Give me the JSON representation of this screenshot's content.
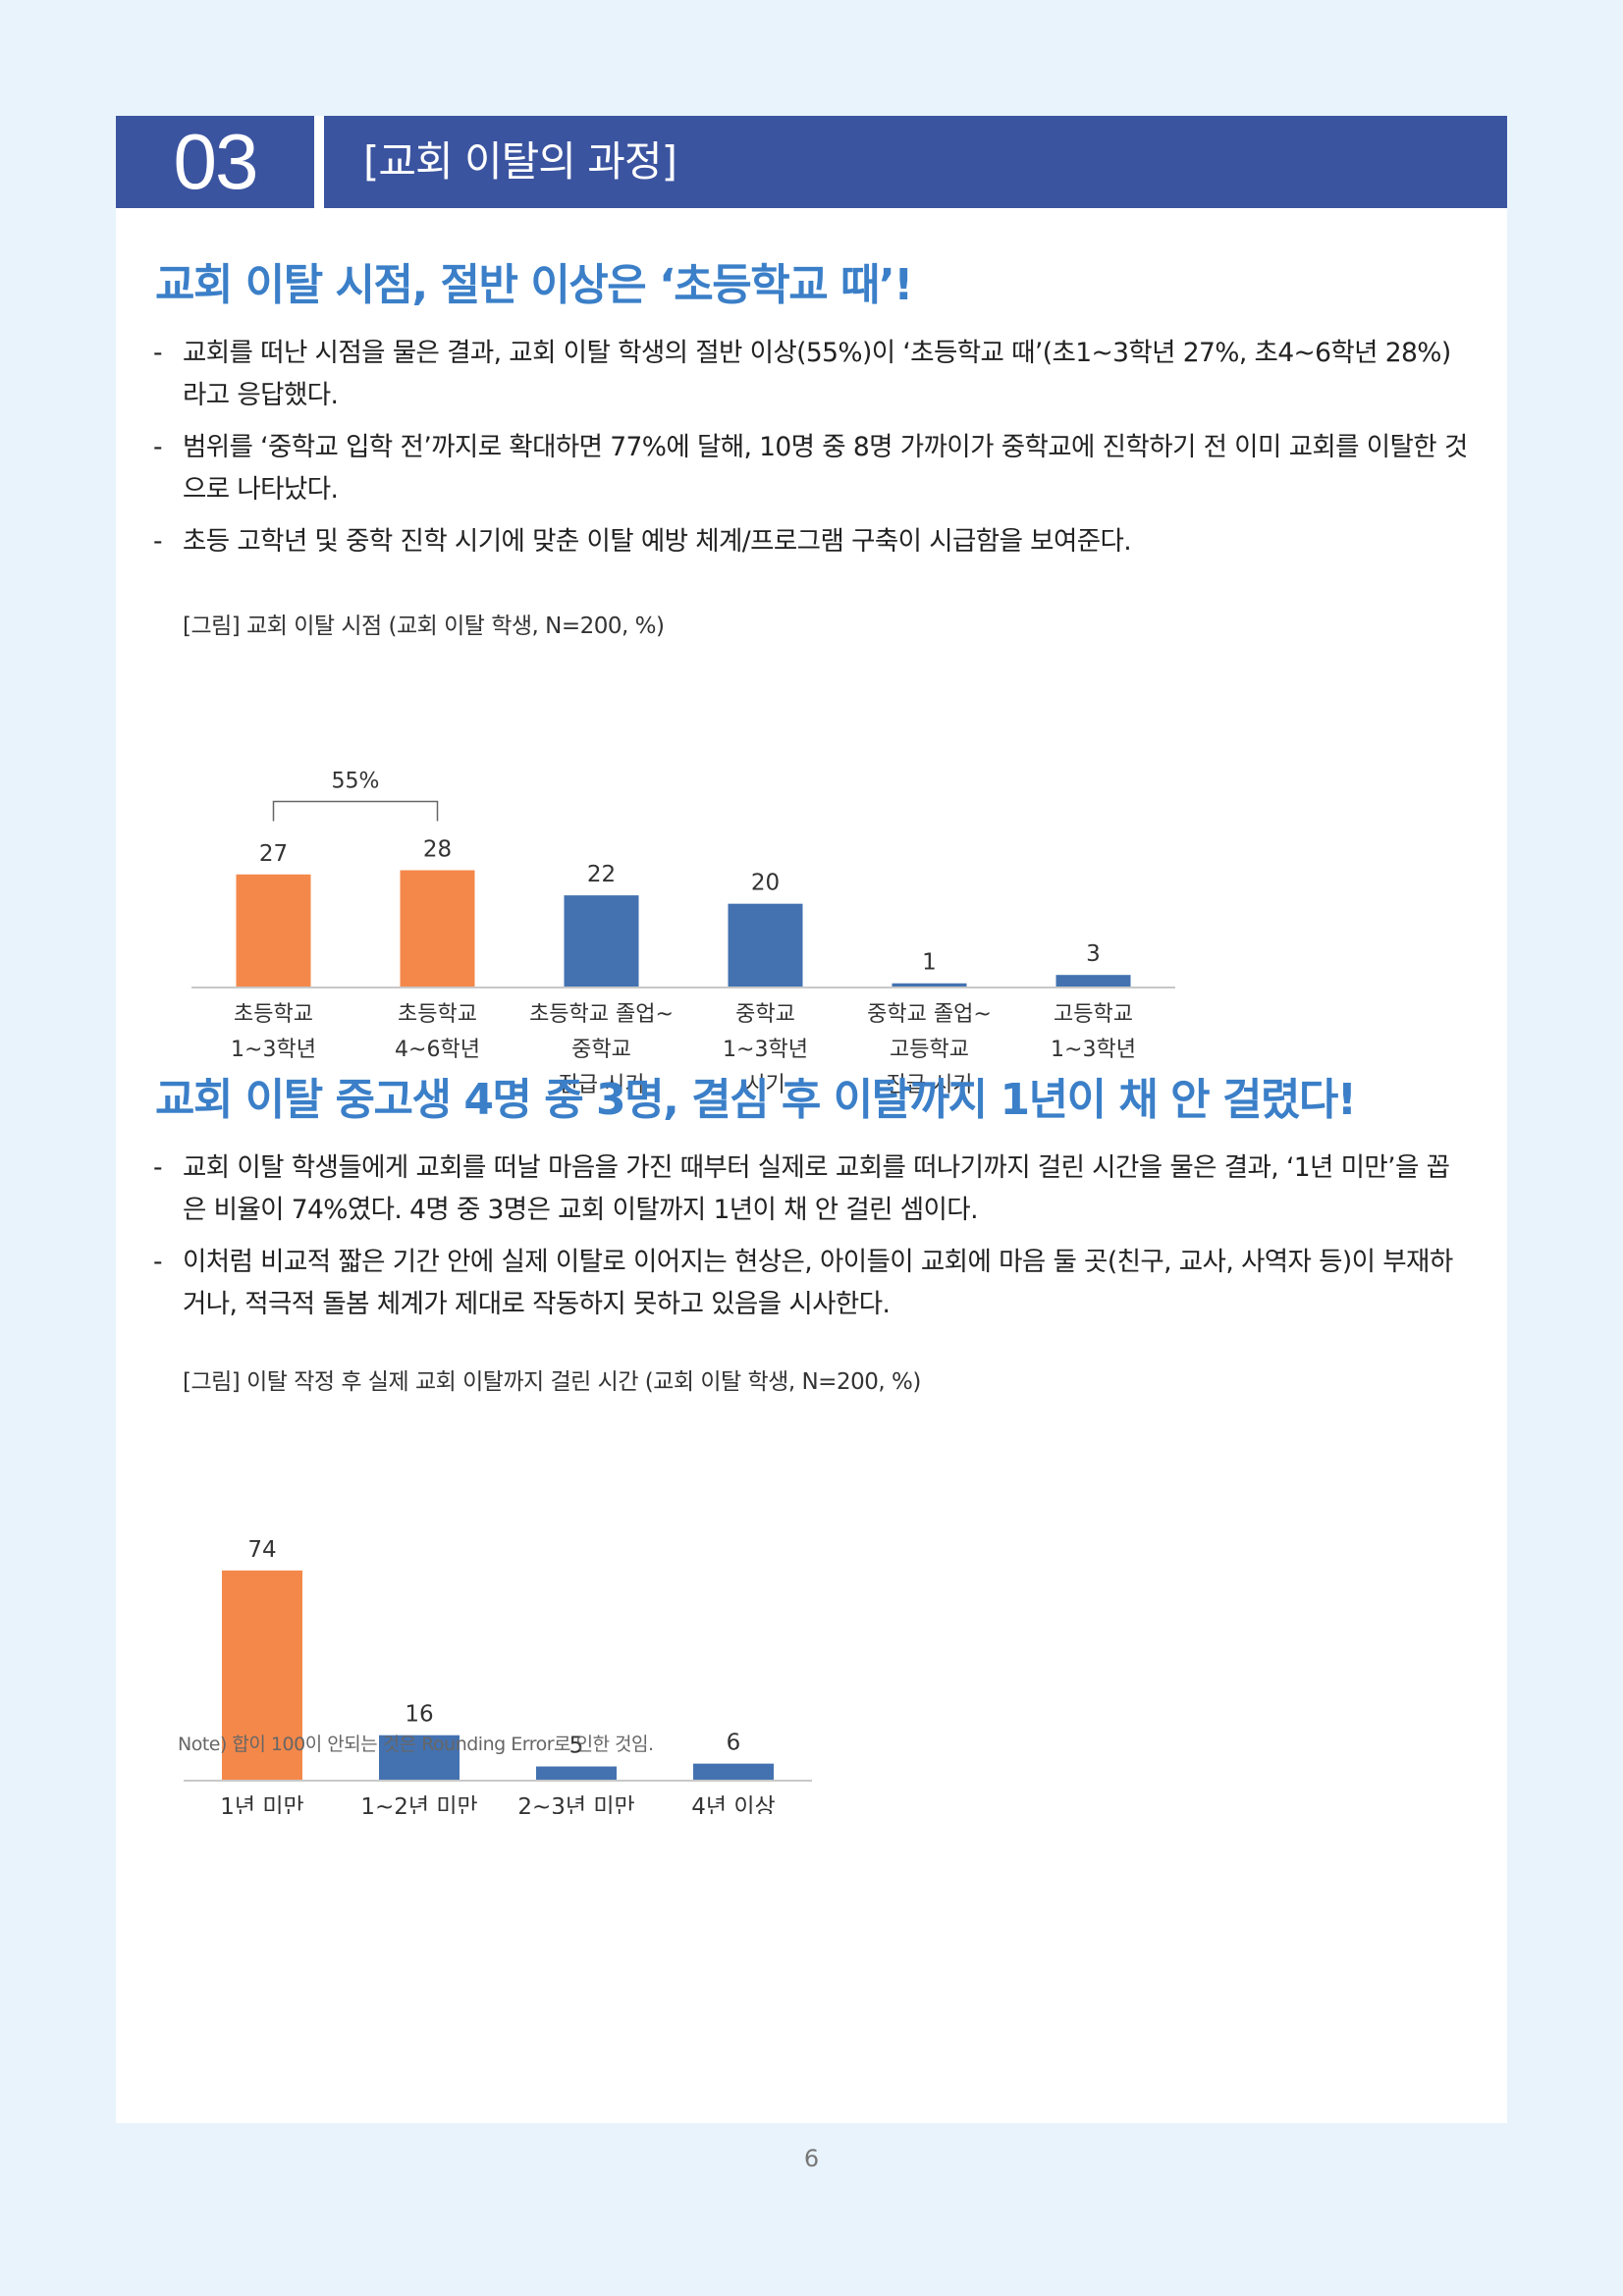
{
  "section": {
    "number": "03",
    "title": "[교회 이탈의 과정]"
  },
  "block1": {
    "headline": "교회 이탈 시점, 절반 이상은 ‘초등학교 때’!",
    "bullets": [
      "교회를 떠난 시점을 물은 결과, 교회 이탈 학생의 절반 이상(55%)이 ‘초등학교 때’(초1~3학년 27%, 초4~6학년 28%)라고 응답했다.",
      "범위를 ‘중학교 입학 전’까지로 확대하면 77%에 달해, 10명 중 8명 가까이가 중학교에 진학하기 전 이미 교회를 이탈한 것으로 나타났다.",
      "초등 고학년 및 중학 진학 시기에 맞춘 이탈 예방 체계/프로그램 구축이 시급함을 보여준다."
    ],
    "figure_caption": "[그림] 교회 이탈 시점 (교회 이탈 학생, N=200, %)"
  },
  "block2": {
    "headline": "교회 이탈 중고생 4명 중 3명, 결심 후 이탈까지 1년이 채 안 걸렸다!",
    "bullets": [
      "교회 이탈 학생들에게 교회를 떠날 마음을 가진 때부터 실제로 교회를 떠나기까지 걸린 시간을 물은 결과, ‘1년 미만’을 꼽은 비율이 74%였다. 4명 중 3명은 교회 이탈까지 1년이 채 안 걸린 셈이다.",
      "이처럼 비교적 짧은 기간 안에 실제 이탈로 이어지는 현상은, 아이들이 교회에 마음 둘 곳(친구, 교사, 사역자 등)이 부재하거나, 적극적 돌봄 체계가 제대로 작동하지 못하고 있음을 시사한다."
    ],
    "figure_caption": "[그림] 이탈 작정 후 실제 교회 이탈까지 걸린 시간 (교회 이탈 학생, N=200, %)",
    "note": "Note) 합이 100이 안되는 것은 Rounding Error로 인한 것임."
  },
  "chart_data": [
    {
      "type": "bar",
      "categories": [
        [
          "초등학교",
          "1~3학년"
        ],
        [
          "초등학교",
          "4~6학년"
        ],
        [
          "초등학교 졸업~",
          "중학교",
          "진급 시기"
        ],
        [
          "중학교",
          "1~3학년",
          "시기"
        ],
        [
          "중학교 졸업~",
          "고등학교",
          "진급 시기"
        ],
        [
          "고등학교",
          "1~3학년"
        ]
      ],
      "values": [
        27,
        28,
        22,
        20,
        1,
        3
      ],
      "data_labels": [
        "27",
        "28",
        "22",
        "20",
        "1",
        "3"
      ],
      "colors": [
        "#f4884a",
        "#f4884a",
        "#4472b0",
        "#4472b0",
        "#4472b0",
        "#4472b0"
      ],
      "annotation": {
        "text": "55%",
        "spans": [
          0,
          1
        ]
      },
      "ylim": [
        0,
        30
      ],
      "grid": false
    },
    {
      "type": "bar",
      "categories": [
        "1년 미만",
        "1~2년 미만",
        "2~3년 미만",
        "4년 이상"
      ],
      "values": [
        74,
        16,
        5,
        6
      ],
      "data_labels": [
        "74",
        "16",
        "5",
        "6"
      ],
      "colors": [
        "#f4884a",
        "#4472b0",
        "#4472b0",
        "#4472b0"
      ],
      "ylim": [
        0,
        75
      ],
      "grid": false
    }
  ],
  "page_number": "6"
}
